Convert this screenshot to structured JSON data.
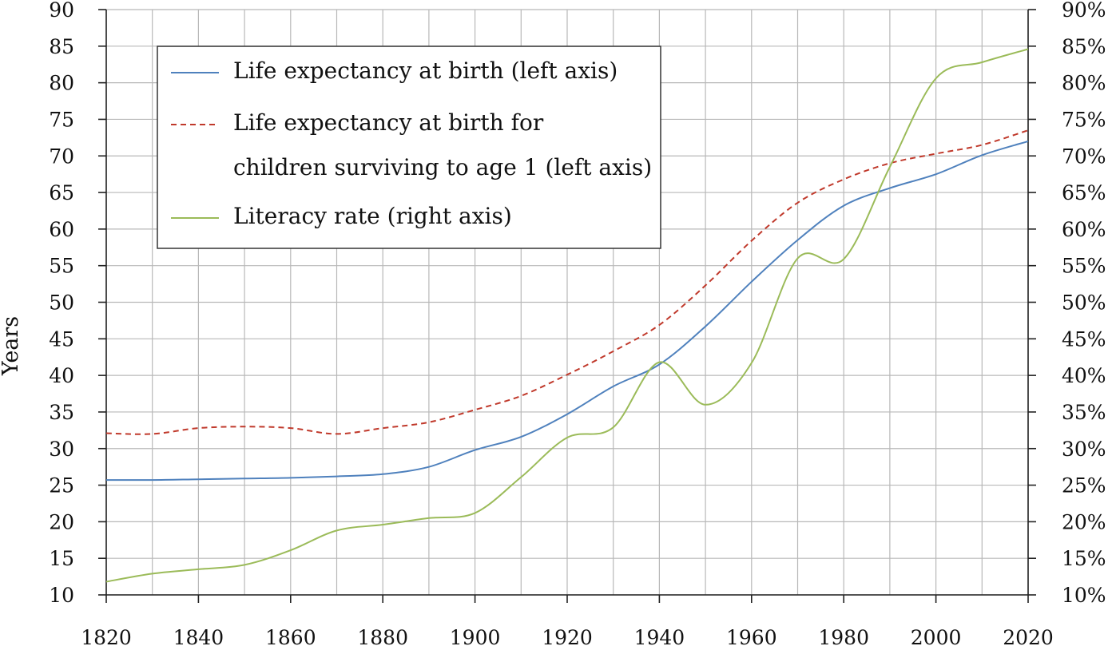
{
  "chart_data": {
    "type": "line",
    "title": "",
    "xlabel": "",
    "ylabel": "Years",
    "y2label": "",
    "xlim": [
      1820,
      2020
    ],
    "ylim": [
      10,
      90
    ],
    "y2lim": [
      10,
      90
    ],
    "x_ticks": [
      1820,
      1840,
      1860,
      1880,
      1900,
      1920,
      1940,
      1960,
      1980,
      2000,
      2020
    ],
    "y_ticks": [
      10,
      15,
      20,
      25,
      30,
      35,
      40,
      45,
      50,
      55,
      60,
      65,
      70,
      75,
      80,
      85,
      90
    ],
    "y2_ticks": [
      "10%",
      "15%",
      "20%",
      "25%",
      "30%",
      "35%",
      "40%",
      "45%",
      "50%",
      "55%",
      "60%",
      "65%",
      "70%",
      "75%",
      "80%",
      "85%",
      "90%"
    ],
    "grid": true,
    "legend_position": "top-left",
    "series": [
      {
        "name": "Life expectancy at birth (left axis)",
        "color": "#4f81bd",
        "dash": "solid",
        "axis": "left",
        "x": [
          1820,
          1830,
          1840,
          1850,
          1860,
          1870,
          1880,
          1890,
          1900,
          1910,
          1920,
          1930,
          1940,
          1950,
          1960,
          1970,
          1980,
          1990,
          2000,
          2010,
          2020
        ],
        "values": [
          25.7,
          25.7,
          25.8,
          25.9,
          26.0,
          26.2,
          26.5,
          27.5,
          29.8,
          31.6,
          34.7,
          38.5,
          41.5,
          46.7,
          52.8,
          58.5,
          63.2,
          65.6,
          67.5,
          70.1,
          72.0
        ]
      },
      {
        "name": "Life expectancy at birth for children surviving to age 1 (left axis)",
        "color": "#c0392b",
        "dash": "dashed",
        "axis": "left",
        "x": [
          1820,
          1830,
          1840,
          1850,
          1860,
          1870,
          1880,
          1890,
          1900,
          1910,
          1920,
          1930,
          1940,
          1950,
          1960,
          1970,
          1980,
          1990,
          2000,
          2010,
          2020
        ],
        "values": [
          32.1,
          32.0,
          32.8,
          33.0,
          32.8,
          32.0,
          32.8,
          33.6,
          35.3,
          37.2,
          40.1,
          43.3,
          46.9,
          52.3,
          58.4,
          63.6,
          66.8,
          69.0,
          70.3,
          71.5,
          73.5
        ]
      },
      {
        "name": "Literacy rate (right axis)",
        "color": "#9bbb59",
        "dash": "solid",
        "axis": "right",
        "x": [
          1820,
          1830,
          1840,
          1850,
          1860,
          1870,
          1880,
          1890,
          1900,
          1910,
          1920,
          1930,
          1940,
          1950,
          1960,
          1970,
          1980,
          1990,
          2000,
          2010,
          2020
        ],
        "values": [
          11.8,
          12.9,
          13.5,
          14.1,
          16.1,
          18.8,
          19.6,
          20.5,
          21.2,
          26.1,
          31.5,
          32.9,
          41.8,
          36.0,
          41.7,
          56.0,
          55.9,
          68.5,
          80.6,
          82.8,
          84.6
        ]
      }
    ]
  }
}
